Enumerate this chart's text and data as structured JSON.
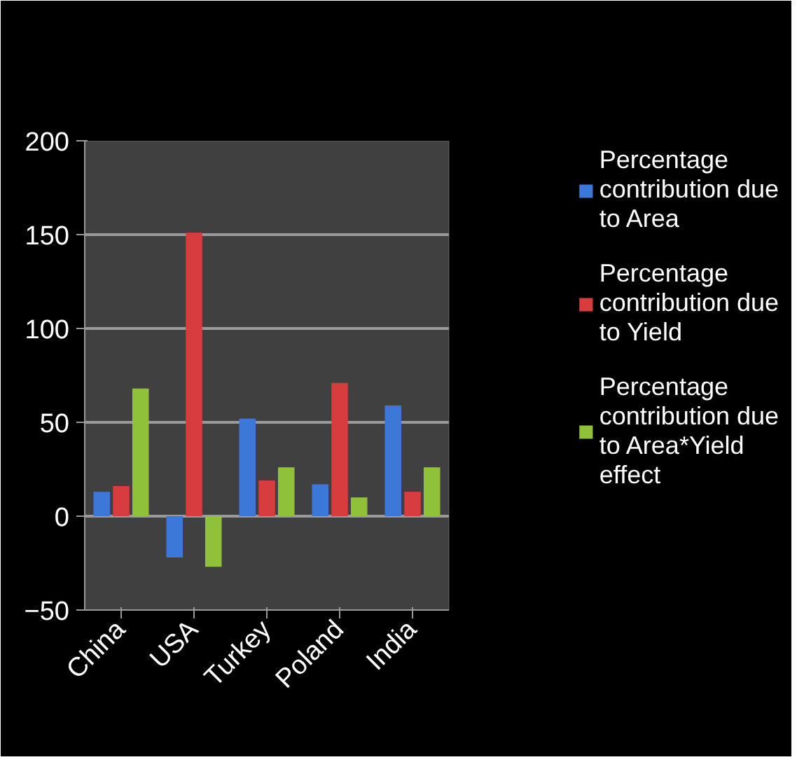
{
  "chart_data": {
    "type": "bar",
    "categories": [
      "China",
      "USA",
      "Turkey",
      "Poland",
      "India"
    ],
    "series": [
      {
        "name": "Percentage contribution due to Area",
        "color": "#3c78d8",
        "values": [
          13,
          -22,
          52,
          17,
          59
        ]
      },
      {
        "name": "Percentage contribution due to Yield",
        "color": "#d83c3c",
        "values": [
          16,
          151,
          19,
          71,
          13
        ]
      },
      {
        "name": "Percentage contribution due to Area*Yield effect",
        "color": "#8fc23a",
        "values": [
          68,
          -27,
          26,
          10,
          26
        ]
      }
    ],
    "ylim": [
      -50,
      200
    ],
    "yticks": [
      -50,
      0,
      50,
      100,
      150,
      200
    ],
    "grid": "y",
    "legend": "right"
  }
}
